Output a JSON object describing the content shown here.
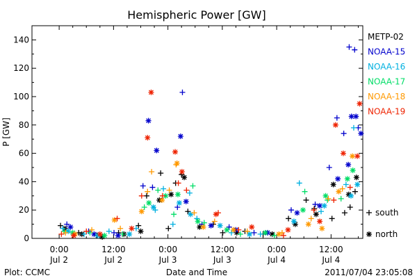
{
  "chart_data": {
    "type": "scatter",
    "title": "Hemispheric Power [GW]",
    "ylabel": "P [GW]",
    "xlabel": "Date and Time",
    "ylim": [
      0,
      150
    ],
    "yticks": [
      0,
      20,
      40,
      60,
      80,
      100,
      120,
      140
    ],
    "xlim_hours": [
      -6,
      67
    ],
    "xticks": [
      {
        "hours": 0,
        "time": "0:00",
        "date": "Jul 2"
      },
      {
        "hours": 12,
        "time": "12:00",
        "date": "Jul 2"
      },
      {
        "hours": 24,
        "time": "0:00",
        "date": "Jul 3"
      },
      {
        "hours": 36,
        "time": "12:00",
        "date": "Jul 3"
      },
      {
        "hours": 48,
        "time": "0:00",
        "date": "Jul 4"
      },
      {
        "hours": 60,
        "time": "12:00",
        "date": "Jul 4"
      }
    ],
    "x_reference": "hours after 2011-07-02 00:00 UT",
    "markers": {
      "south": "+",
      "north": "*"
    },
    "marker_legend": [
      {
        "symbol": "+",
        "label": "south"
      },
      {
        "symbol": "*",
        "label": "north"
      }
    ],
    "footer_left": "Plot: CCMC",
    "footer_right": "2011/07/04 23:05:08",
    "series": [
      {
        "name": "METP-02",
        "color": "#000000",
        "points": [
          [
            0.3,
            9,
            "s"
          ],
          [
            4.3,
            4,
            "s"
          ],
          [
            8.3,
            2,
            "s"
          ],
          [
            13.1,
            4,
            "s"
          ],
          [
            17.5,
            9,
            "s"
          ],
          [
            19.3,
            30,
            "s"
          ],
          [
            22.4,
            46,
            "s"
          ],
          [
            24.1,
            7,
            "s"
          ],
          [
            25.7,
            39,
            "s"
          ],
          [
            27,
            45,
            "s"
          ],
          [
            28.4,
            19,
            "s"
          ],
          [
            34,
            10,
            "s"
          ],
          [
            36.1,
            4,
            "s"
          ],
          [
            41,
            5,
            "s"
          ],
          [
            45,
            3,
            "s"
          ],
          [
            50.6,
            14,
            "s"
          ],
          [
            54.5,
            27,
            "s"
          ],
          [
            56.3,
            21,
            "s"
          ],
          [
            60.2,
            14,
            "s"
          ],
          [
            63,
            18,
            "s"
          ],
          [
            64.2,
            22,
            "s"
          ],
          [
            65.3,
            33,
            "s"
          ],
          [
            1.3,
            7,
            "n"
          ],
          [
            5,
            3,
            "n"
          ],
          [
            9.5,
            1,
            "n"
          ],
          [
            14.3,
            3,
            "n"
          ],
          [
            18,
            5,
            "n"
          ],
          [
            22.1,
            27,
            "n"
          ],
          [
            24.7,
            31,
            "n"
          ],
          [
            27.6,
            43,
            "n"
          ],
          [
            31,
            8,
            "n"
          ],
          [
            39.2,
            4,
            "n"
          ],
          [
            47,
            3,
            "n"
          ],
          [
            52.1,
            10,
            "n"
          ],
          [
            56.7,
            17,
            "n"
          ],
          [
            60.5,
            38,
            "n"
          ],
          [
            63.9,
            31,
            "n"
          ],
          [
            65.6,
            43,
            "n"
          ]
        ]
      },
      {
        "name": "NOAA-15",
        "color": "#0000cc",
        "points": [
          [
            1.7,
            10,
            "s"
          ],
          [
            6.5,
            5,
            "s"
          ],
          [
            12.1,
            4,
            "s"
          ],
          [
            18.5,
            37,
            "s"
          ],
          [
            20.6,
            36,
            "s"
          ],
          [
            26.1,
            22,
            "s"
          ],
          [
            27.2,
            103,
            "s"
          ],
          [
            31.5,
            10,
            "s"
          ],
          [
            37.5,
            8,
            "s"
          ],
          [
            43,
            4,
            "s"
          ],
          [
            51.2,
            20,
            "s"
          ],
          [
            56.5,
            24,
            "s"
          ],
          [
            59.6,
            50,
            "s"
          ],
          [
            61.3,
            85,
            "s"
          ],
          [
            62.8,
            74,
            "s"
          ],
          [
            64,
            135,
            "s"
          ],
          [
            65.2,
            133,
            "s"
          ],
          [
            66,
            78,
            "s"
          ],
          [
            2.5,
            8,
            "n"
          ],
          [
            7.7,
            3,
            "n"
          ],
          [
            13,
            2,
            "n"
          ],
          [
            19.7,
            83,
            "n"
          ],
          [
            21.5,
            62,
            "n"
          ],
          [
            26.8,
            72,
            "n"
          ],
          [
            28,
            26,
            "n"
          ],
          [
            33.5,
            9,
            "n"
          ],
          [
            39,
            6,
            "n"
          ],
          [
            46,
            4,
            "n"
          ],
          [
            52.5,
            18,
            "n"
          ],
          [
            57.5,
            23,
            "n"
          ],
          [
            61.5,
            42,
            "n"
          ],
          [
            63.8,
            52,
            "n"
          ],
          [
            64.5,
            86,
            "n"
          ],
          [
            65.5,
            86,
            "n"
          ],
          [
            66.6,
            74,
            "n"
          ]
        ]
      },
      {
        "name": "NOAA-16",
        "color": "#00b0e0",
        "points": [
          [
            0.8,
            7,
            "s"
          ],
          [
            5.5,
            3,
            "s"
          ],
          [
            11,
            5,
            "s"
          ],
          [
            17,
            7,
            "s"
          ],
          [
            21.2,
            20,
            "s"
          ],
          [
            23,
            35,
            "s"
          ],
          [
            25.1,
            10,
            "s"
          ],
          [
            28.8,
            32,
            "s"
          ],
          [
            30.4,
            14,
            "s"
          ],
          [
            38,
            4,
            "s"
          ],
          [
            44.4,
            3,
            "s"
          ],
          [
            53,
            39,
            "s"
          ],
          [
            57.8,
            19,
            "s"
          ],
          [
            63.3,
            38,
            "s"
          ],
          [
            65,
            78,
            "s"
          ],
          [
            2,
            5,
            "n"
          ],
          [
            8.5,
            2,
            "n"
          ],
          [
            15.5,
            3,
            "n"
          ],
          [
            20.8,
            22,
            "n"
          ],
          [
            26.5,
            25,
            "n"
          ],
          [
            29,
            17,
            "n"
          ],
          [
            35.5,
            9,
            "n"
          ],
          [
            42,
            3,
            "n"
          ],
          [
            51.8,
            12,
            "n"
          ],
          [
            58.5,
            23,
            "n"
          ],
          [
            64.4,
            30,
            "n"
          ],
          [
            65.8,
            38,
            "n"
          ]
        ]
      },
      {
        "name": "NOAA-17",
        "color": "#00dd66",
        "points": [
          [
            1.1,
            5,
            "s"
          ],
          [
            6.8,
            4,
            "s"
          ],
          [
            14,
            3,
            "s"
          ],
          [
            18.8,
            22,
            "s"
          ],
          [
            21.8,
            34,
            "s"
          ],
          [
            25.3,
            17,
            "s"
          ],
          [
            29.5,
            37,
            "s"
          ],
          [
            32,
            11,
            "s"
          ],
          [
            40,
            3,
            "s"
          ],
          [
            47.5,
            2,
            "s"
          ],
          [
            54.2,
            33,
            "s"
          ],
          [
            59.2,
            27,
            "s"
          ],
          [
            62.2,
            28,
            "s"
          ],
          [
            3,
            4,
            "n"
          ],
          [
            10,
            2,
            "n"
          ],
          [
            19.8,
            25,
            "n"
          ],
          [
            23.5,
            30,
            "n"
          ],
          [
            26.2,
            31,
            "n"
          ],
          [
            30.6,
            12,
            "n"
          ],
          [
            37,
            6,
            "n"
          ],
          [
            45.5,
            4,
            "n"
          ],
          [
            53.8,
            20,
            "n"
          ],
          [
            58.8,
            30,
            "n"
          ],
          [
            63.6,
            42,
            "n"
          ],
          [
            64.8,
            48,
            "n"
          ]
        ]
      },
      {
        "name": "NOAA-18",
        "color": "#ff9900",
        "points": [
          [
            1.4,
            4,
            "s"
          ],
          [
            7.2,
            6,
            "s"
          ],
          [
            13.5,
            7,
            "s"
          ],
          [
            19.5,
            33,
            "s"
          ],
          [
            20.4,
            47,
            "s"
          ],
          [
            24.3,
            34,
            "s"
          ],
          [
            25.8,
            52,
            "s"
          ],
          [
            29.8,
            18,
            "s"
          ],
          [
            34.3,
            12,
            "s"
          ],
          [
            41.5,
            5,
            "s"
          ],
          [
            49.2,
            4,
            "s"
          ],
          [
            55.6,
            14,
            "s"
          ],
          [
            59.4,
            28,
            "s"
          ],
          [
            62.5,
            35,
            "s"
          ],
          [
            3.5,
            3,
            "n"
          ],
          [
            12.2,
            13,
            "n"
          ],
          [
            18.2,
            19,
            "n"
          ],
          [
            22.7,
            27,
            "n"
          ],
          [
            26,
            53,
            "n"
          ],
          [
            31.8,
            8,
            "n"
          ],
          [
            38.5,
            6,
            "n"
          ],
          [
            48.5,
            3,
            "n"
          ],
          [
            55,
            10,
            "n"
          ],
          [
            58,
            7,
            "n"
          ],
          [
            61.7,
            33,
            "n"
          ],
          [
            64.7,
            58,
            "n"
          ]
        ]
      },
      {
        "name": "NOAA-19",
        "color": "#ee2200",
        "points": [
          [
            0.5,
            3,
            "s"
          ],
          [
            6,
            5,
            "s"
          ],
          [
            12.8,
            14,
            "s"
          ],
          [
            18.2,
            30,
            "s"
          ],
          [
            22.8,
            30,
            "s"
          ],
          [
            26.3,
            39,
            "s"
          ],
          [
            28.1,
            34,
            "s"
          ],
          [
            35.1,
            18,
            "s"
          ],
          [
            39.6,
            6,
            "s"
          ],
          [
            49.5,
            2,
            "s"
          ],
          [
            56.2,
            20,
            "s"
          ],
          [
            60.6,
            27,
            "s"
          ],
          [
            64.2,
            36,
            "s"
          ],
          [
            3.2,
            2,
            "n"
          ],
          [
            9,
            3,
            "n"
          ],
          [
            16,
            7,
            "n"
          ],
          [
            19.5,
            71,
            "n"
          ],
          [
            20.3,
            103,
            "n"
          ],
          [
            25.6,
            61,
            "n"
          ],
          [
            27.1,
            47,
            "n"
          ],
          [
            34.6,
            17,
            "n"
          ],
          [
            42.5,
            8,
            "n"
          ],
          [
            50.5,
            6,
            "n"
          ],
          [
            57.5,
            12,
            "n"
          ],
          [
            61,
            80,
            "n"
          ],
          [
            62.7,
            60,
            "n"
          ],
          [
            65.8,
            58,
            "n"
          ],
          [
            66.3,
            95,
            "n"
          ]
        ]
      }
    ]
  }
}
